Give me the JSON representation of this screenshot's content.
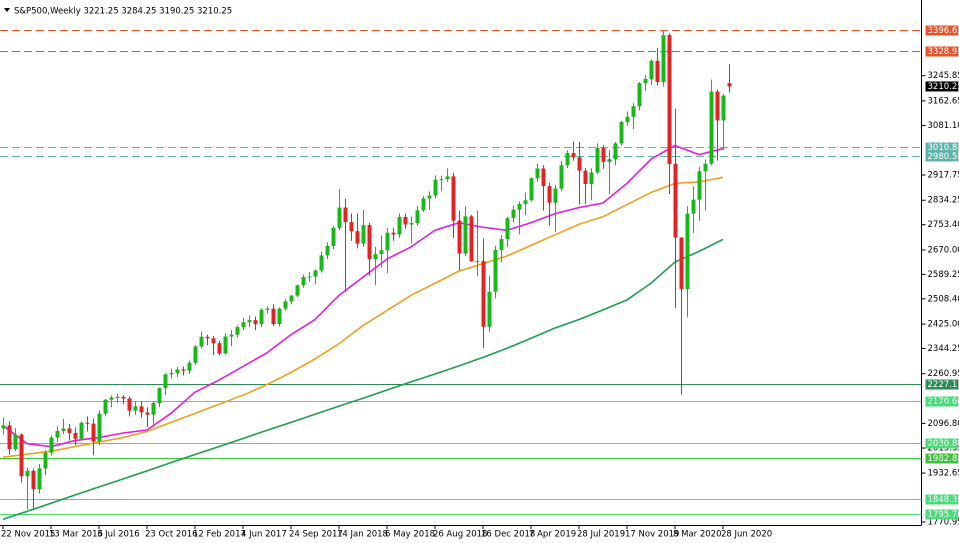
{
  "chart_data": {
    "type": "candlestick",
    "title": "S&P500,Weekly  3221.25 3284.25 3190.25 3210.25",
    "up_color": "#17b817",
    "down_color": "#e02424",
    "ylim": [
      1761,
      3496
    ],
    "yticks": [
      3245.85,
      3162.65,
      {
        "value": 3081.1,
        "label": "3081.10"
      },
      2917.75,
      2834.25,
      {
        "value": 2753.4,
        "label": "2753.40"
      },
      {
        "value": 2670,
        "label": "2670.00"
      },
      2589.25,
      {
        "value": 2508.4,
        "label": "2508.40"
      },
      {
        "value": 2425,
        "label": "2425.00"
      },
      2344.25,
      2260.95,
      {
        "value": 2096.8,
        "label": "2096.80"
      },
      2015.35,
      1932.65,
      1770.95
    ],
    "categories": [
      "22 Nov 2015",
      null,
      null,
      null,
      null,
      null,
      null,
      null,
      "13 Mar 2016",
      null,
      null,
      null,
      null,
      null,
      null,
      null,
      "3 Jul 2016",
      null,
      null,
      null,
      null,
      null,
      null,
      null,
      "23 Oct 2016",
      null,
      null,
      null,
      null,
      null,
      null,
      null,
      "12 Feb 2017",
      null,
      null,
      null,
      null,
      null,
      null,
      null,
      "4 Jun 2017",
      null,
      null,
      null,
      null,
      null,
      null,
      null,
      "24 Sep 2017",
      null,
      null,
      null,
      null,
      null,
      null,
      null,
      "14 Jan 2018",
      null,
      null,
      null,
      null,
      null,
      null,
      null,
      "6 May 2018",
      null,
      null,
      null,
      null,
      null,
      null,
      null,
      "26 Aug 2018",
      null,
      null,
      null,
      null,
      null,
      null,
      null,
      "16 Dec 2018",
      null,
      null,
      null,
      null,
      null,
      null,
      null,
      "7 Apr 2019",
      null,
      null,
      null,
      null,
      null,
      null,
      null,
      "28 Jul 2019",
      null,
      null,
      null,
      null,
      null,
      null,
      null,
      "17 Nov 2019",
      null,
      null,
      null,
      null,
      null,
      null,
      null,
      "8 Mar 2020",
      null,
      null,
      null,
      null,
      null,
      null,
      null,
      "28 Jun 2020",
      null
    ],
    "ohlc": [
      [
        2080,
        2116,
        2060,
        2090
      ],
      [
        2090,
        2104,
        1993,
        2012
      ],
      [
        2012,
        2081,
        2005,
        2060
      ],
      [
        2060,
        2063,
        1901,
        1922
      ],
      [
        1922,
        1950,
        1812,
        1940
      ],
      [
        1940,
        1947,
        1810,
        1880
      ],
      [
        1880,
        1962,
        1865,
        1948
      ],
      [
        1948,
        2009,
        1926,
        2000
      ],
      [
        2000,
        2057,
        1990,
        2050
      ],
      [
        2050,
        2087,
        2035,
        2072
      ],
      [
        2072,
        2111,
        2060,
        2080
      ],
      [
        2080,
        2095,
        2040,
        2065
      ],
      [
        2065,
        2084,
        2025,
        2046
      ],
      [
        2046,
        2103,
        2040,
        2099
      ],
      [
        2099,
        2120,
        2070,
        2096
      ],
      [
        2096,
        2113,
        1991,
        2037
      ],
      [
        2037,
        2140,
        2025,
        2129
      ],
      [
        2129,
        2178,
        2120,
        2175
      ],
      [
        2175,
        2188,
        2150,
        2182
      ],
      [
        2182,
        2194,
        2165,
        2184
      ],
      [
        2184,
        2191,
        2160,
        2179
      ],
      [
        2179,
        2186,
        2120,
        2139
      ],
      [
        2139,
        2170,
        2125,
        2153
      ],
      [
        2153,
        2169,
        2115,
        2133
      ],
      [
        2133,
        2150,
        2085,
        2126
      ],
      [
        2126,
        2170,
        2084,
        2164
      ],
      [
        2164,
        2215,
        2150,
        2213
      ],
      [
        2213,
        2262,
        2190,
        2259
      ],
      [
        2259,
        2278,
        2245,
        2263
      ],
      [
        2263,
        2283,
        2250,
        2275
      ],
      [
        2275,
        2285,
        2255,
        2271
      ],
      [
        2271,
        2305,
        2260,
        2297
      ],
      [
        2297,
        2355,
        2290,
        2351
      ],
      [
        2351,
        2401,
        2345,
        2383
      ],
      [
        2383,
        2390,
        2355,
        2378
      ],
      [
        2378,
        2386,
        2322,
        2362
      ],
      [
        2362,
        2370,
        2322,
        2328
      ],
      [
        2328,
        2395,
        2325,
        2384
      ],
      [
        2384,
        2405,
        2352,
        2390
      ],
      [
        2390,
        2420,
        2380,
        2415
      ],
      [
        2415,
        2446,
        2405,
        2431
      ],
      [
        2431,
        2453,
        2415,
        2438
      ],
      [
        2438,
        2450,
        2405,
        2425
      ],
      [
        2425,
        2477,
        2415,
        2472
      ],
      [
        2472,
        2484,
        2460,
        2476
      ],
      [
        2476,
        2490,
        2418,
        2425
      ],
      [
        2425,
        2480,
        2417,
        2476
      ],
      [
        2476,
        2508,
        2470,
        2500
      ],
      [
        2500,
        2522,
        2490,
        2519
      ],
      [
        2519,
        2555,
        2515,
        2553
      ],
      [
        2553,
        2588,
        2545,
        2581
      ],
      [
        2581,
        2597,
        2565,
        2582
      ],
      [
        2582,
        2606,
        2557,
        2602
      ],
      [
        2602,
        2665,
        2595,
        2652
      ],
      [
        2652,
        2695,
        2640,
        2683
      ],
      [
        2683,
        2750,
        2672,
        2743
      ],
      [
        2743,
        2872,
        2735,
        2810
      ],
      [
        2810,
        2840,
        2532,
        2762
      ],
      [
        2762,
        2790,
        2700,
        2732
      ],
      [
        2732,
        2790,
        2675,
        2691
      ],
      [
        2691,
        2802,
        2680,
        2752
      ],
      [
        2752,
        2760,
        2585,
        2640
      ],
      [
        2640,
        2680,
        2553,
        2656
      ],
      [
        2656,
        2718,
        2612,
        2669
      ],
      [
        2669,
        2742,
        2594,
        2727
      ],
      [
        2727,
        2742,
        2700,
        2721
      ],
      [
        2721,
        2791,
        2710,
        2779
      ],
      [
        2779,
        2790,
        2740,
        2754
      ],
      [
        2754,
        2780,
        2692,
        2759
      ],
      [
        2759,
        2815,
        2750,
        2801
      ],
      [
        2801,
        2848,
        2795,
        2840
      ],
      [
        2840,
        2863,
        2802,
        2850
      ],
      [
        2850,
        2916,
        2840,
        2902
      ],
      [
        2902,
        2916,
        2864,
        2904
      ],
      [
        2904,
        2940,
        2895,
        2913
      ],
      [
        2913,
        2925,
        2710,
        2767
      ],
      [
        2767,
        2800,
        2603,
        2658
      ],
      [
        2658,
        2815,
        2650,
        2781
      ],
      [
        2781,
        2786,
        2631,
        2632
      ],
      [
        2632,
        2800,
        2583,
        2633
      ],
      [
        2633,
        2708,
        2346,
        2416
      ],
      [
        2416,
        2585,
        2400,
        2532
      ],
      [
        2532,
        2684,
        2510,
        2670
      ],
      [
        2670,
        2718,
        2630,
        2706
      ],
      [
        2706,
        2780,
        2680,
        2775
      ],
      [
        2775,
        2816,
        2760,
        2803
      ],
      [
        2803,
        2830,
        2722,
        2822
      ],
      [
        2822,
        2860,
        2785,
        2834
      ],
      [
        2834,
        2910,
        2830,
        2907
      ],
      [
        2907,
        2954,
        2895,
        2939
      ],
      [
        2939,
        2950,
        2800,
        2881
      ],
      [
        2881,
        2892,
        2750,
        2826
      ],
      [
        2826,
        2885,
        2729,
        2873
      ],
      [
        2873,
        2964,
        2865,
        2950
      ],
      [
        2950,
        3000,
        2940,
        2990
      ],
      [
        2990,
        3028,
        2965,
        2976
      ],
      [
        2976,
        3027,
        2820,
        2932
      ],
      [
        2932,
        2940,
        2822,
        2888
      ],
      [
        2888,
        2940,
        2834,
        2926
      ],
      [
        2926,
        3022,
        2920,
        3007
      ],
      [
        3007,
        3016,
        2938,
        2961
      ],
      [
        2961,
        3000,
        2855,
        2970
      ],
      [
        2970,
        3027,
        2950,
        3022
      ],
      [
        3022,
        3097,
        3015,
        3093
      ],
      [
        3093,
        3127,
        3080,
        3110
      ],
      [
        3110,
        3155,
        3070,
        3145
      ],
      [
        3145,
        3225,
        3130,
        3221
      ],
      [
        3221,
        3247,
        3195,
        3235
      ],
      [
        3235,
        3300,
        3215,
        3295
      ],
      [
        3295,
        3337,
        3214,
        3225
      ],
      [
        3225,
        3393,
        3210,
        3380
      ],
      [
        3380,
        3386,
        2855,
        2954
      ],
      [
        2954,
        3136,
        2478,
        2711
      ],
      [
        2711,
        2712,
        2192,
        2541
      ],
      [
        2541,
        2815,
        2447,
        2790
      ],
      [
        2790,
        2880,
        2727,
        2836
      ],
      [
        2836,
        2945,
        2766,
        2930
      ],
      [
        2930,
        2969,
        2800,
        2955
      ],
      [
        2955,
        3233,
        2950,
        3193
      ],
      [
        3193,
        3200,
        2965,
        3098
      ],
      [
        3098,
        3185,
        3000,
        3180
      ],
      [
        3221.25,
        3284.25,
        3190.25,
        3210.25
      ]
    ],
    "moving_averages": [
      {
        "color": "#e020e0",
        "values": [
          2090,
          2030,
          2020,
          2040,
          2050,
          2065,
          2075,
          2130,
          2200,
          2240,
          2285,
          2330,
          2390,
          2440,
          2520,
          2580,
          2640,
          2680,
          2735,
          2760,
          2745,
          2735,
          2760,
          2790,
          2810,
          2825,
          2890,
          2970,
          3015,
          2985,
          3005
        ]
      },
      {
        "color": "#f0a020",
        "values": [
          1985,
          1995,
          2005,
          2020,
          2035,
          2050,
          2070,
          2100,
          2130,
          2160,
          2190,
          2225,
          2265,
          2310,
          2360,
          2420,
          2470,
          2520,
          2560,
          2600,
          2625,
          2650,
          2685,
          2720,
          2755,
          2780,
          2820,
          2860,
          2890,
          2895,
          2910
        ]
      },
      {
        "color": "#1e9e4e",
        "values": [
          1780,
          1806,
          1833,
          1860,
          1887,
          1913,
          1940,
          1967,
          1994,
          2020,
          2047,
          2074,
          2100,
          2127,
          2154,
          2180,
          2207,
          2234,
          2260,
          2287,
          2315,
          2345,
          2378,
          2412,
          2440,
          2472,
          2505,
          2560,
          2630,
          2665,
          2705
        ]
      }
    ],
    "levels": [
      {
        "value": 3396.62,
        "label": "3396.62",
        "color": "#e8542a",
        "style": "dashed"
      },
      {
        "value": 3328.93,
        "label": "3328.93",
        "color": "#e8542a",
        "style": "dashed"
      },
      {
        "value": 3010.83,
        "label": "3010.83",
        "color": "#5fb3a8",
        "style": "dashed"
      },
      {
        "value": 2980.58,
        "label": "2980.58",
        "color": "#5fb3a8",
        "style": "dashed"
      },
      {
        "value": 2227.11,
        "label": "2227.11",
        "color": "#2e8b57",
        "style": "solid"
      },
      {
        "value": 2170.6,
        "label": "2170.60",
        "color": "#4cd97a",
        "style": "solid"
      },
      {
        "value": 2030.8,
        "label": "2030.80",
        "color": "#4cd97a",
        "style": "solid"
      },
      {
        "value": 1982.89,
        "label": "1982.89",
        "color": "#3cc43c",
        "style": "solid"
      },
      {
        "value": 1848.39,
        "label": "1848.39",
        "color": "#4cd97a",
        "style": "solid"
      },
      {
        "value": 1795.76,
        "label": "1795.76",
        "color": "#4cd97a",
        "style": "solid"
      }
    ]
  }
}
